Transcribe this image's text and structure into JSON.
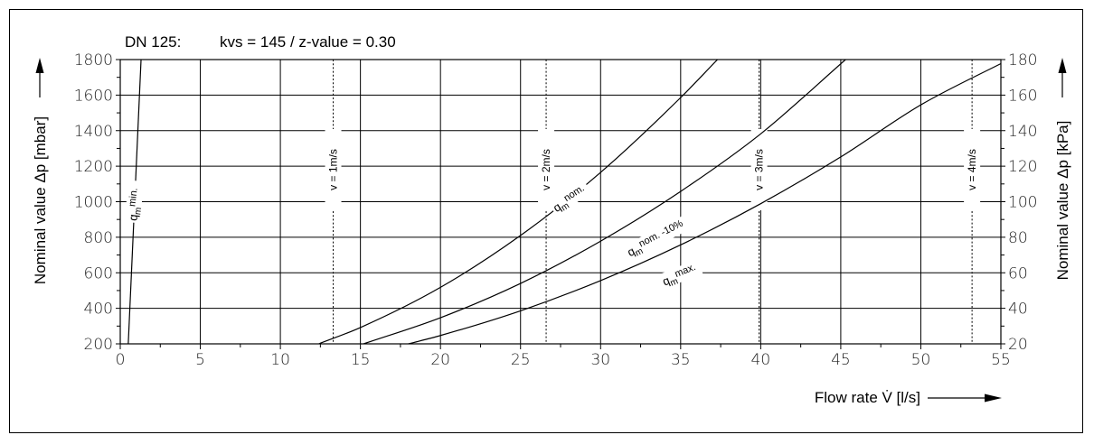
{
  "chart_data": {
    "type": "line",
    "title": "DN 125:",
    "subtitle": "kvs = 145 / z-value = 0.30",
    "xlabel": "Flow rate V̇ [l/s]",
    "ylabel_left": "Nominal value Δp [mbar]",
    "ylabel_right": "Nominal value Δp [kPa]",
    "xlim": [
      0,
      55
    ],
    "ylim_left": [
      200,
      1800
    ],
    "ylim_right": [
      20,
      180
    ],
    "x_ticks": [
      0,
      5,
      10,
      15,
      20,
      25,
      30,
      35,
      40,
      45,
      50,
      55
    ],
    "x_tick_labels": [
      "0",
      "5",
      "10",
      "15",
      "20",
      "25",
      "30",
      "35",
      "40",
      "45",
      "50",
      "55"
    ],
    "y_left_ticks": [
      200,
      400,
      600,
      800,
      1000,
      1200,
      1400,
      1600,
      1800
    ],
    "y_left_tick_labels": [
      "200",
      "400",
      "600",
      "800",
      "1000",
      "1200",
      "1400",
      "1600",
      "1800"
    ],
    "y_right_ticks": [
      20,
      40,
      60,
      80,
      100,
      120,
      140,
      160,
      180
    ],
    "y_right_tick_labels": [
      "20",
      "40",
      "60",
      "80",
      "100",
      "120",
      "140",
      "160",
      "180"
    ],
    "grid": true,
    "velocity_lines": [
      {
        "x": 13.3,
        "label": "v = 1m/s"
      },
      {
        "x": 26.6,
        "label": "v = 2m/s"
      },
      {
        "x": 39.9,
        "label": "v = 3m/s"
      },
      {
        "x": 53.2,
        "label": "v = 4m/s"
      }
    ],
    "series": [
      {
        "name": "qm min.",
        "label_main": "q",
        "label_sub": "m",
        "label_sup": "min.",
        "x": [
          0.5,
          0.7,
          0.9,
          1.1,
          1.3
        ],
        "y": [
          200,
          600,
          1000,
          1400,
          1800
        ]
      },
      {
        "name": "qm nom.",
        "label_main": "q",
        "label_sub": "m",
        "label_sup": "nom.",
        "x": [
          12.4,
          15,
          20,
          25,
          30,
          35,
          37.3
        ],
        "y": [
          200,
          292,
          518,
          810,
          1165,
          1586,
          1800
        ]
      },
      {
        "name": "qm nom. -10%",
        "label_main": "q",
        "label_sub": "m",
        "label_sup": "nom. -10%",
        "x": [
          15.2,
          20,
          25,
          30,
          35,
          40,
          45.3
        ],
        "y": [
          200,
          347,
          540,
          778,
          1058,
          1382,
          1800
        ]
      },
      {
        "name": "qm max.",
        "label_main": "q",
        "label_sub": "m",
        "label_sup": "max.",
        "x": [
          18,
          20,
          25,
          30,
          35,
          40,
          45,
          50,
          55.5
        ],
        "y": [
          200,
          247,
          386,
          556,
          757,
          989,
          1252,
          1545,
          1800
        ]
      }
    ]
  }
}
